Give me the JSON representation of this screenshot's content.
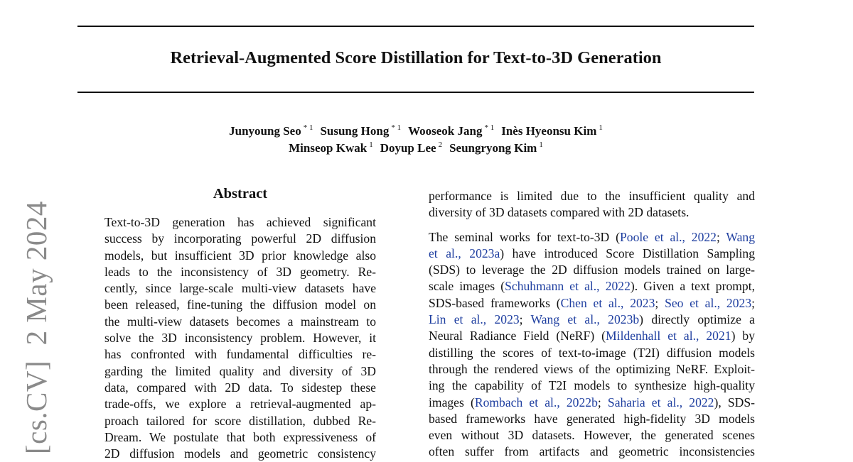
{
  "arxiv_stamp": "[cs.CV]  2 May 2024",
  "title": "Retrieval-Augmented Score Distillation for Text-to-3D Generation",
  "authors": {
    "row1": [
      {
        "name": "Junyoung Seo",
        "aff": "* 1"
      },
      {
        "name": "Susung Hong",
        "aff": "* 1"
      },
      {
        "name": "Wooseok Jang",
        "aff": "* 1"
      },
      {
        "name": "Inès Hyeonsu Kim",
        "aff": "1"
      }
    ],
    "row2": [
      {
        "name": "Minseop Kwak",
        "aff": "1"
      },
      {
        "name": "Doyup Lee",
        "aff": "2"
      },
      {
        "name": "Seungryong Kim",
        "aff": "1"
      }
    ]
  },
  "abstract": {
    "heading": "Abstract",
    "lines": [
      "Text-to-3D generation has achieved significant",
      "success by incorporating powerful 2D diffusion",
      "models, but insufficient 3D prior knowledge also",
      "leads to the inconsistency of 3D geometry.  Re-",
      "cently, since large-scale multi-view datasets have",
      "been released, fine-tuning the diffusion model on",
      "the multi-view datasets becomes a mainstream to",
      "solve the 3D inconsistency problem. However, it",
      "has confronted with fundamental difficulties re-",
      "garding the limited quality and diversity of 3D",
      "data, compared with 2D data.  To sidestep these",
      "trade-offs, we explore a retrieval-augmented ap-",
      "proach tailored for score distillation, dubbed Re-",
      "Dream. We postulate that both expressiveness of",
      "2D diffusion models and geometric consistency"
    ]
  },
  "intro": {
    "paragraphs": [
      [
        [
          {
            "t": "performance is limited due to the insufficient quality and"
          }
        ],
        [
          {
            "t": "diversity of 3D datasets compared with 2D datasets."
          }
        ]
      ],
      [
        [
          {
            "t": "The seminal works for text-to-3D ("
          },
          {
            "t": "Poole et al., 2022",
            "cite": true
          },
          {
            "t": "; "
          },
          {
            "t": "Wang",
            "cite": true
          }
        ],
        [
          {
            "t": "et al., 2023a",
            "cite": true
          },
          {
            "t": ") have introduced Score Distillation Sampling"
          }
        ],
        [
          {
            "t": "(SDS) to leverage the 2D diffusion models trained on large-"
          }
        ],
        [
          {
            "t": "scale images ("
          },
          {
            "t": "Schuhmann et al., 2022",
            "cite": true
          },
          {
            "t": "). Given a text prompt,"
          }
        ],
        [
          {
            "t": "SDS-based frameworks ("
          },
          {
            "t": "Chen et al., 2023",
            "cite": true
          },
          {
            "t": "; "
          },
          {
            "t": "Seo et al., 2023",
            "cite": true
          },
          {
            "t": ";"
          }
        ],
        [
          {
            "t": "Lin et al., 2023",
            "cite": true
          },
          {
            "t": "; "
          },
          {
            "t": "Wang et al., 2023b",
            "cite": true
          },
          {
            "t": ") directly optimize a"
          }
        ],
        [
          {
            "t": "Neural Radiance Field (NeRF) ("
          },
          {
            "t": "Mildenhall et al., 2021",
            "cite": true
          },
          {
            "t": ") by"
          }
        ],
        [
          {
            "t": "distilling the scores of text-to-image (T2I) diffusion models"
          }
        ],
        [
          {
            "t": "through the rendered views of the optimizing NeRF. Exploit-"
          }
        ],
        [
          {
            "t": "ing the capability of T2I models to synthesize high-quality"
          }
        ],
        [
          {
            "t": "images ("
          },
          {
            "t": "Rombach et al., 2022b",
            "cite": true
          },
          {
            "t": "; "
          },
          {
            "t": "Saharia et al., 2022",
            "cite": true
          },
          {
            "t": "), SDS-"
          }
        ],
        [
          {
            "t": "based frameworks have generated high-fidelity 3D models"
          }
        ],
        [
          {
            "t": "even without 3D datasets.  However, the generated scenes"
          }
        ],
        [
          {
            "t": "often suffer from artifacts and geometric inconsistencies"
          }
        ]
      ]
    ]
  },
  "colors": {
    "text": "#111111",
    "citation": "#1f3fa0",
    "stamp": "#8a8a8a"
  }
}
